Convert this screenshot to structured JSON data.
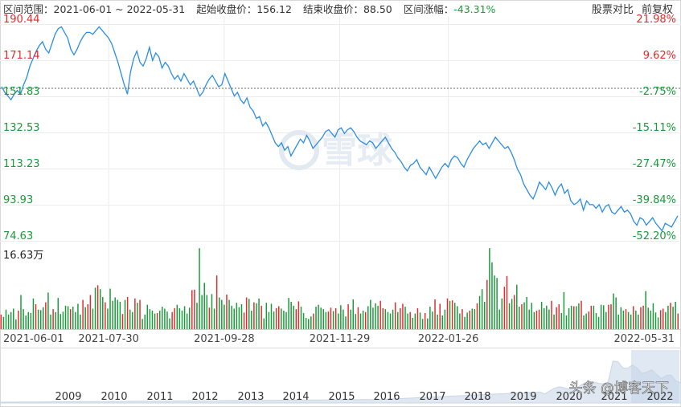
{
  "header": {
    "range_label": "区间范围：2021-06-01 ~ 2022-05-31",
    "start_price_label": "起始收盘价：156.12",
    "end_price_label": "结束收盘价：88.50",
    "change_label_prefix": "区间涨幅：",
    "change_value": "-43.31%",
    "compare_button": "股票对比",
    "adjust_button": "前复权"
  },
  "watermark": {
    "text": "雪球"
  },
  "credit": {
    "text": "头条 @博客天下"
  },
  "colors": {
    "line": "#2b8de3",
    "up": "#e02c2c",
    "down": "#1a9a3a",
    "grid": "#ececec",
    "text": "#333333"
  },
  "chart_data": [
    {
      "type": "line",
      "title": "",
      "left_axis_ticks": [
        "190.44",
        "171.14",
        "151.83",
        "132.53",
        "113.23",
        "93.93",
        "74.63"
      ],
      "right_axis_ticks": [
        "21.98%",
        "9.62%",
        "-2.75%",
        "-15.11%",
        "-27.47%",
        "-39.84%",
        "-52.20%"
      ],
      "ylim": [
        74.63,
        190.44
      ],
      "baseline": 156.12,
      "x_tick_labels": [
        "2021-06-01",
        "2021-07-30",
        "2021-09-28",
        "2021-11-29",
        "2022-01-26",
        "2022-05-31"
      ],
      "series": [
        {
          "values": [
            157,
            154,
            152,
            150,
            153,
            155,
            153,
            158,
            162,
            168,
            172,
            176,
            179,
            181,
            177,
            175,
            180,
            185,
            188,
            189,
            186,
            183,
            177,
            174,
            177,
            181,
            184,
            186,
            186,
            185,
            187,
            189,
            187,
            185,
            183,
            180,
            175,
            170,
            164,
            158,
            153,
            165,
            172,
            176,
            170,
            168,
            172,
            178,
            171,
            175,
            173,
            167,
            170,
            168,
            164,
            161,
            163,
            160,
            164,
            161,
            158,
            160,
            156,
            152,
            154,
            158,
            161,
            163,
            160,
            157,
            158,
            164,
            160,
            156,
            152,
            154,
            150,
            148,
            151,
            146,
            144,
            140,
            141,
            136,
            138,
            135,
            131,
            127,
            125,
            127,
            123,
            125,
            120,
            123,
            126,
            129,
            127,
            131,
            128,
            124,
            126,
            128,
            130,
            133,
            134,
            132,
            130,
            134,
            135,
            132,
            134,
            135,
            133,
            130,
            128,
            127,
            126,
            128,
            127,
            124,
            126,
            128,
            130,
            127,
            124,
            122,
            119,
            117,
            114,
            112,
            115,
            116,
            118,
            114,
            112,
            110,
            114,
            111,
            108,
            111,
            114,
            116,
            114,
            118,
            120,
            119,
            116,
            114,
            118,
            121,
            124,
            126,
            128,
            126,
            127,
            124,
            127,
            130,
            128,
            126,
            124,
            125,
            122,
            118,
            113,
            110,
            105,
            102,
            99,
            97,
            101,
            106,
            104,
            102,
            106,
            103,
            99,
            103,
            105,
            100,
            102,
            96,
            94,
            95,
            97,
            91,
            96,
            94,
            94,
            92,
            94,
            90,
            93,
            94,
            90,
            89,
            91,
            93,
            90,
            91,
            89,
            85,
            83,
            87,
            86,
            83,
            85,
            87,
            84,
            82,
            80,
            84,
            83,
            82,
            85,
            88
          ]
        }
      ]
    },
    {
      "type": "bar",
      "title": "",
      "max_label": "16.63万",
      "ylim": [
        0,
        16.63
      ],
      "values": [
        3,
        2.5,
        4,
        3,
        3.5,
        4.2,
        2,
        3.8,
        7,
        4.1,
        2.8,
        3.5,
        3.3,
        6.3,
        5.1,
        4,
        3.9,
        4.5,
        5.5,
        7.5,
        3,
        4.1,
        3.5,
        6.4,
        3.1,
        3.6,
        4.8,
        4.7,
        4.1,
        4.6,
        3.5,
        5.2,
        3,
        6,
        4.5,
        5.1,
        7,
        4.2,
        8.5,
        9,
        8.2,
        6.6,
        5.5,
        4.2,
        8.3,
        5.8,
        6.5,
        6,
        5.6,
        3.1,
        6,
        6.6,
        4,
        3.5,
        6.3,
        5.4,
        6,
        2.1,
        3,
        5,
        4.1,
        3.8,
        3.2,
        3.3,
        3.8,
        4.6,
        4.2,
        3.6,
        2.2,
        3.5,
        4.3,
        5,
        4.3,
        3.8,
        4.7,
        3.2,
        4.4,
        8,
        8.1,
        5.4,
        16.6,
        7,
        9.5,
        7,
        4.4,
        7.2,
        4.2,
        11,
        6.5,
        6,
        5,
        7.1,
        6,
        4.8,
        4.2,
        5.4,
        4.5,
        5.1,
        3.4,
        6.5,
        6.2,
        3.8,
        5.5,
        5.3,
        6.3,
        4.8,
        2.2,
        5.4,
        3.5,
        5.2,
        3.6,
        4.3,
        4.7,
        4.2,
        3.8,
        3.5,
        6.4,
        5.6,
        4.8,
        4.1,
        5.7,
        4.6,
        3.3,
        2.3,
        2.1,
        2.6,
        3.2,
        4.6,
        5,
        4.4,
        4.1,
        3.5,
        3.6,
        4.4,
        3.7,
        4.3,
        3.2,
        4.9,
        4,
        2.6,
        5.1,
        4,
        6.1,
        3.1,
        4.5,
        3.2,
        3.8,
        3.5,
        4.7,
        6,
        4.4,
        5.3,
        4.8,
        5.8,
        4.3,
        4.1,
        3.5,
        3.2,
        4,
        5.5,
        3.5,
        4.3,
        5.2,
        4.6,
        3.2,
        3.5,
        2.3,
        3.2,
        4.3,
        3.4,
        2.1,
        3.3,
        2.2,
        4.6,
        3.6,
        6.1,
        3,
        5.2,
        2.8,
        4,
        6.3,
        5.8,
        5.9,
        5.4,
        4.7,
        3.2,
        4.1,
        2.5,
        3.4,
        3.8,
        4.2,
        4.1,
        5.3,
        6.8,
        8.2,
        5.6,
        10.1,
        16.6,
        13.7,
        11,
        10.5,
        4,
        6.3,
        8.7,
        10.9,
        5.3,
        6.2,
        7,
        9.1,
        4.6,
        5.1,
        5.5,
        6.6,
        4,
        5.4,
        3.5,
        3.8,
        4,
        5.6,
        4.3,
        4.8,
        4,
        5.8,
        3,
        4.5,
        5.1,
        3.3,
        7.6,
        2.8,
        4.3,
        4.8,
        4.7,
        4.7,
        5.3,
        5.8,
        2.8,
        3.2,
        3.6,
        4.8,
        4.8,
        3.3,
        2.5,
        5,
        4.9,
        3.5,
        5,
        5.1,
        7.3,
        6.5,
        3,
        4.5,
        3.8,
        4.1,
        3.5,
        3,
        4.7,
        3.8,
        3,
        4.5,
        4.8,
        7.8,
        4.4,
        3.8,
        5.3,
        3.4,
        2.4,
        3.9,
        4.2,
        3.5,
        4.8,
        5.4,
        4.6,
        5.6,
        3.2
      ]
    },
    {
      "type": "area",
      "title": "",
      "x_tick_labels": [
        "2009",
        "2010",
        "2011",
        "2012",
        "2013",
        "2014",
        "2015",
        "2016",
        "2017",
        "2018",
        "2019",
        "2020",
        "2021",
        "2022"
      ]
    }
  ]
}
